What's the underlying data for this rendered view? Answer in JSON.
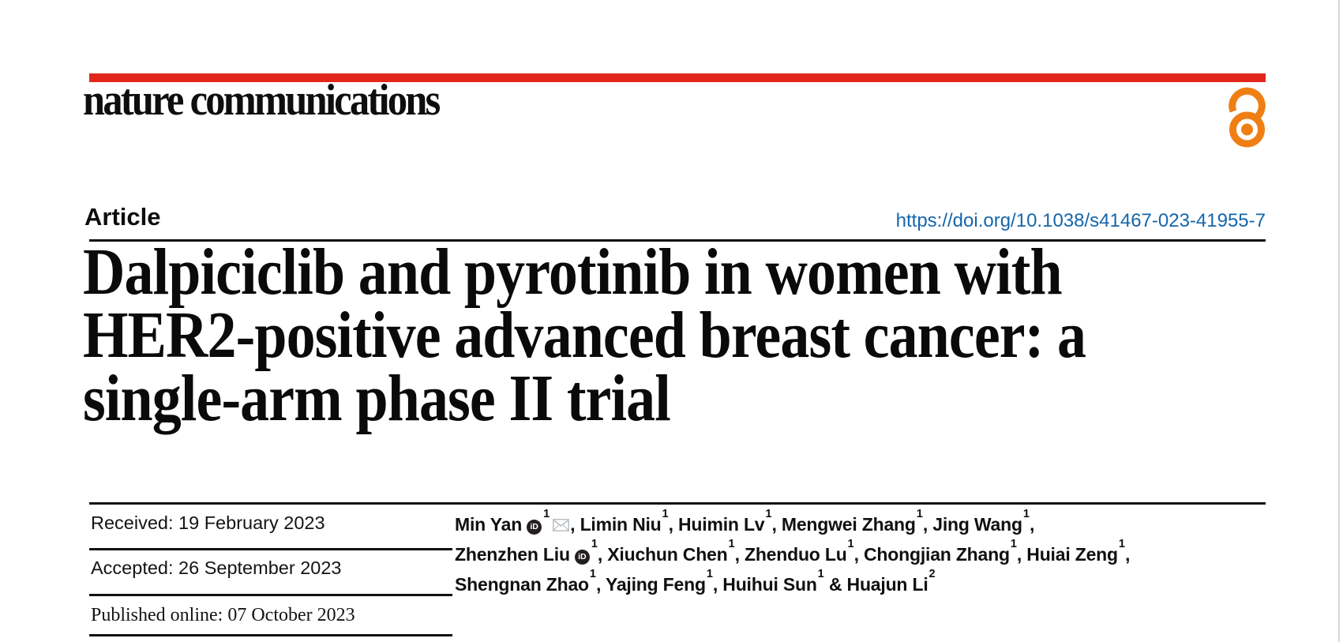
{
  "page": {
    "background": "#ffffff",
    "right_edge_color": "#d9d9d9"
  },
  "header": {
    "journal_name": "nature communications",
    "brand_bar_color": "#e2261c",
    "open_access_icon": "open-access-icon",
    "open_access_color": "#ef7f14"
  },
  "article_meta": {
    "type_label": "Article",
    "doi": "https://doi.org/10.1038/s41467-023-41955-7",
    "doi_color": "#1566ac"
  },
  "title": {
    "lines": [
      "Dalpiciclib and pyrotinib in women with",
      "HER2-positive advanced breast cancer: a",
      "single-arm phase II trial"
    ]
  },
  "history": {
    "rows": [
      {
        "label": "Received:",
        "value": "19 February 2023"
      },
      {
        "label": "Accepted:",
        "value": "26 September 2023"
      },
      {
        "label": "Published online:",
        "value": "07 October 2023"
      }
    ]
  },
  "authors": {
    "orcid_icon": "orcid-icon",
    "orcid_label": "iD",
    "email_icon": "envelope-icon",
    "email_icon_color": "#b9bec4",
    "lines": [
      [
        {
          "name": "Min Yan",
          "sup": "1",
          "orcid": true,
          "email": true,
          "sep": ", "
        },
        {
          "name": "Limin Niu",
          "sup": "1",
          "sep": ", "
        },
        {
          "name": "Huimin Lv",
          "sup": "1",
          "sep": ", "
        },
        {
          "name": "Mengwei Zhang",
          "sup": "1",
          "sep": ", "
        },
        {
          "name": "Jing Wang",
          "sup": "1",
          "sep": ","
        }
      ],
      [
        {
          "name": "Zhenzhen Liu",
          "sup": "1",
          "orcid": true,
          "sep": ", "
        },
        {
          "name": "Xiuchun Chen",
          "sup": "1",
          "sep": ", "
        },
        {
          "name": "Zhenduo Lu",
          "sup": "1",
          "sep": ", "
        },
        {
          "name": "Chongjian Zhang",
          "sup": "1",
          "sep": ", "
        },
        {
          "name": "Huiai Zeng",
          "sup": "1",
          "sep": ","
        }
      ],
      [
        {
          "name": "Shengnan Zhao",
          "sup": "1",
          "sep": ", "
        },
        {
          "name": "Yajing Feng",
          "sup": "1",
          "sep": ", "
        },
        {
          "name": "Huihui Sun",
          "sup": "1",
          "sep": " & "
        },
        {
          "name": "Huajun Li",
          "sup": "2",
          "sep": ""
        }
      ]
    ]
  }
}
